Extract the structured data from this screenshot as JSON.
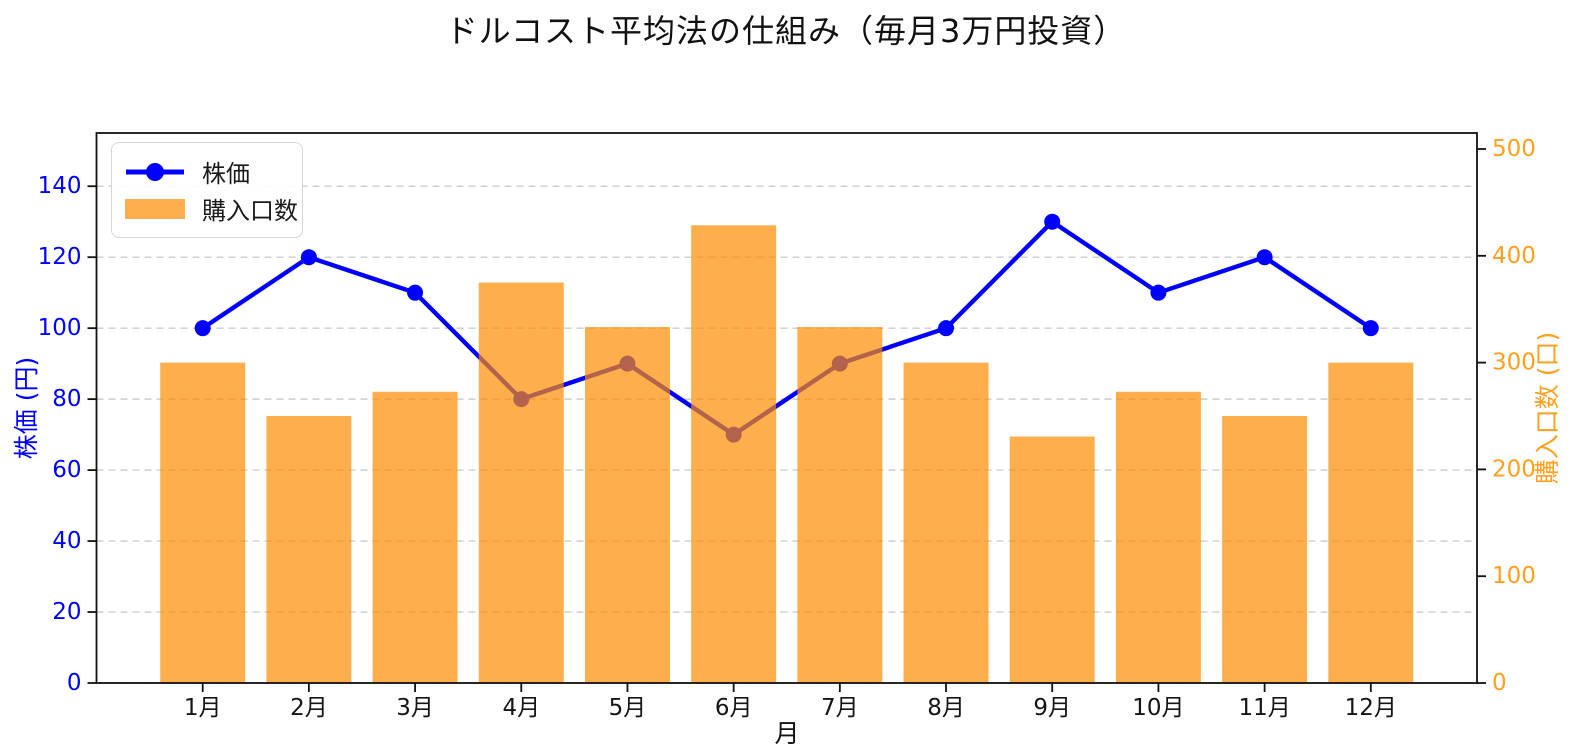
{
  "chart_data": {
    "type": "combo-bar-line",
    "title": "ドルコスト平均法の仕組み（毎月3万円投資）",
    "xlabel": "月",
    "categories": [
      "1月",
      "2月",
      "3月",
      "4月",
      "5月",
      "6月",
      "7月",
      "8月",
      "9月",
      "10月",
      "11月",
      "12月"
    ],
    "series": [
      {
        "name": "株価",
        "type": "line",
        "axis": "left",
        "color": "#0000ff",
        "marker": "circle",
        "values": [
          100,
          120,
          110,
          80,
          90,
          70,
          90,
          100,
          130,
          110,
          120,
          100
        ]
      },
      {
        "name": "購入口数",
        "type": "bar",
        "axis": "right",
        "color": "#ff8c00",
        "opacity": 0.7,
        "values": [
          300,
          250,
          272.7,
          375,
          333.3,
          428.6,
          333.3,
          300,
          230.8,
          272.7,
          250,
          300
        ]
      }
    ],
    "axes": {
      "left": {
        "label": "株価 (円)",
        "ticks": [
          0,
          20,
          40,
          60,
          80,
          100,
          120,
          140
        ],
        "range": [
          0,
          155
        ],
        "text_color": "#0000ff"
      },
      "right": {
        "label": "購入口数 (口)",
        "ticks": [
          0,
          100,
          200,
          300,
          400,
          500
        ],
        "range": [
          0,
          515
        ],
        "text_color": "#ffa01e"
      }
    },
    "grid": {
      "on": true,
      "axis": "left",
      "style": "dashed",
      "color": "#cccccc"
    },
    "legend": {
      "position": "upper-left",
      "items": [
        "株価",
        "購入口数"
      ]
    },
    "spine_color": "#111111",
    "tick_label_color_x": "#151515"
  }
}
